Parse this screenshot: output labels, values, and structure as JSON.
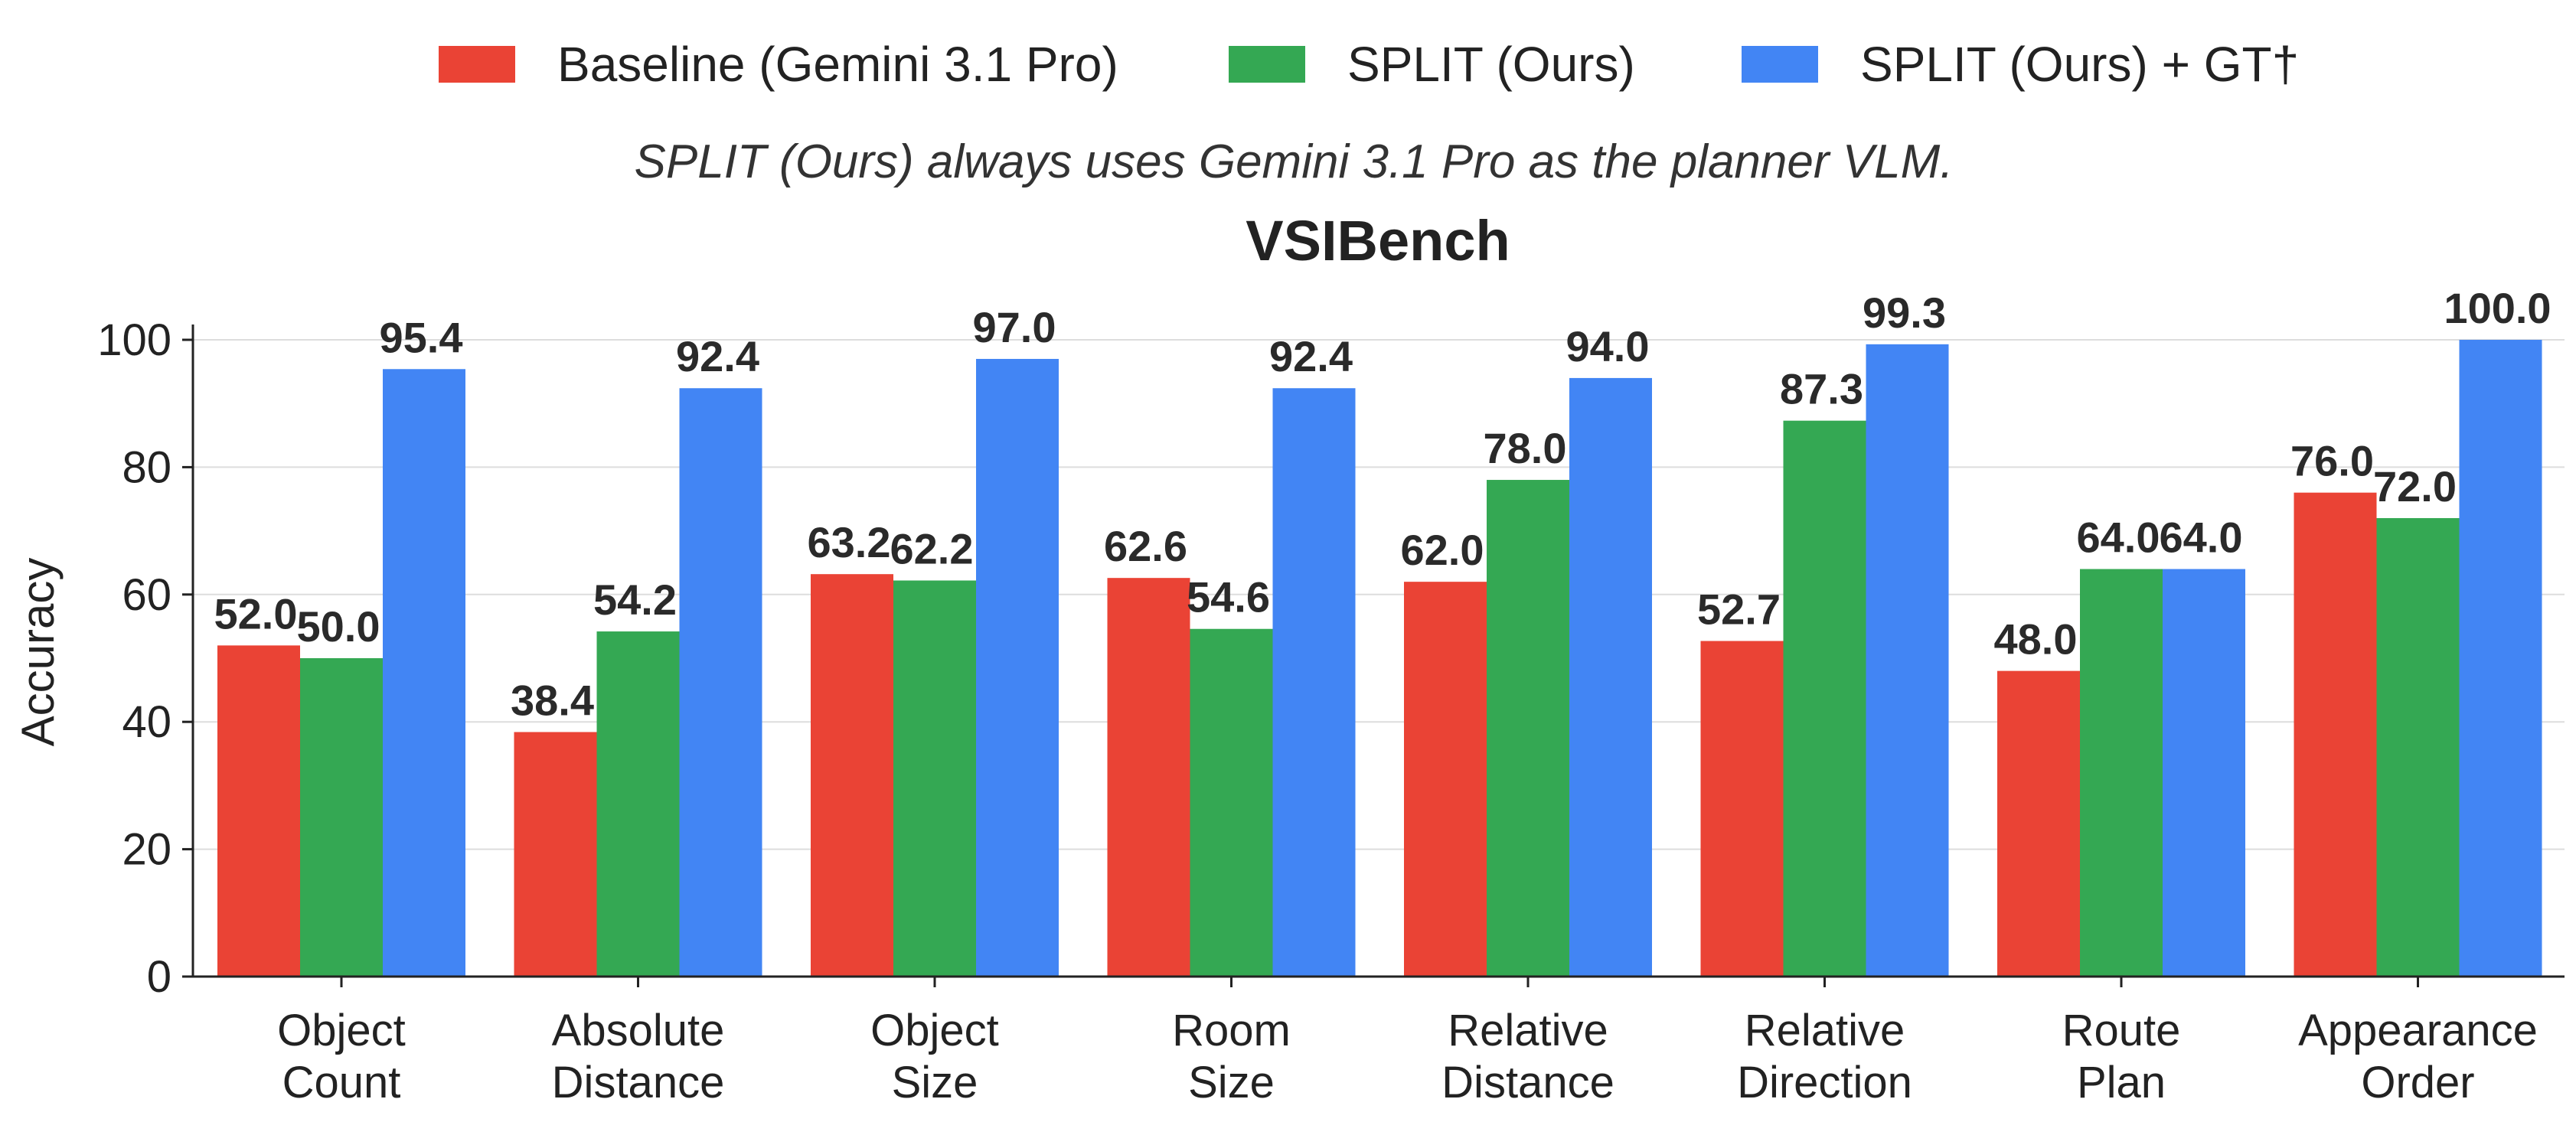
{
  "legend": {
    "items": [
      {
        "label": "Baseline (Gemini 3.1 Pro)",
        "color": "#EA4335"
      },
      {
        "label": "SPLIT (Ours)",
        "color": "#34A853"
      },
      {
        "label": "SPLIT (Ours) + GT†",
        "color": "#4285F4"
      }
    ]
  },
  "subtitle": "SPLIT (Ours) always uses Gemini 3.1 Pro as the planner VLM.",
  "chart_data": {
    "type": "bar",
    "title": "VSIBench",
    "xlabel": "",
    "ylabel": "Accuracy",
    "ylim": [
      0,
      100
    ],
    "yticks": [
      0,
      20,
      40,
      60,
      80,
      100
    ],
    "grid": true,
    "legend_position": "top-center",
    "categories": [
      [
        "Object",
        "Count"
      ],
      [
        "Absolute",
        "Distance"
      ],
      [
        "Object",
        "Size"
      ],
      [
        "Room",
        "Size"
      ],
      [
        "Relative",
        "Distance"
      ],
      [
        "Relative",
        "Direction"
      ],
      [
        "Route",
        "Plan"
      ],
      [
        "Appearance",
        "Order"
      ]
    ],
    "series": [
      {
        "name": "Baseline (Gemini 3.1 Pro)",
        "color": "#EA4335",
        "values": [
          52.0,
          38.4,
          63.2,
          62.6,
          62.0,
          52.7,
          48.0,
          76.0
        ],
        "labels": [
          "52.0",
          "38.4",
          "63.2",
          "62.6",
          "62.0",
          "52.7",
          "48.0",
          "76.0"
        ]
      },
      {
        "name": "SPLIT (Ours)",
        "color": "#34A853",
        "values": [
          50.0,
          54.2,
          62.2,
          54.6,
          78.0,
          87.3,
          64.0,
          72.0
        ],
        "labels": [
          "50.0",
          "54.2",
          "62.2",
          "54.6",
          "78.0",
          "87.3",
          "64.0",
          "72.0"
        ]
      },
      {
        "name": "SPLIT (Ours) + GT†",
        "color": "#4285F4",
        "values": [
          95.4,
          92.4,
          97.0,
          92.4,
          94.0,
          99.3,
          64.0,
          100.0
        ],
        "labels": [
          "95.4",
          "92.4",
          "97.0",
          "92.4",
          "94.0",
          "99.3",
          "64.0",
          "100.0"
        ]
      }
    ]
  }
}
